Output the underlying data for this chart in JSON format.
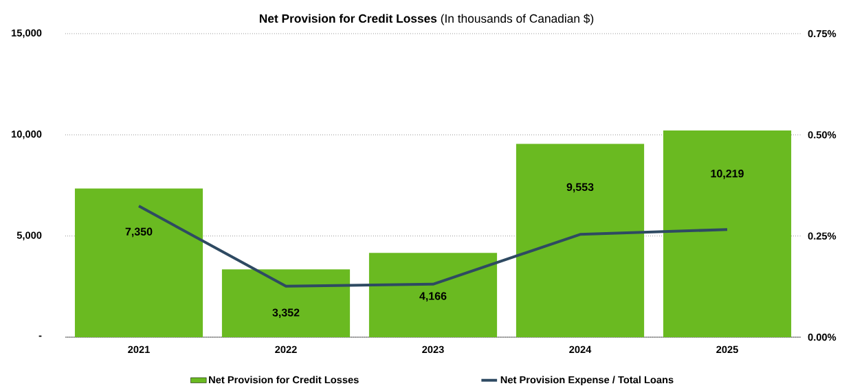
{
  "chart_data": {
    "type": "bar",
    "title": "**Net Provision for Credit Losses** (In thousands of Canadian $)",
    "categories": [
      "2021",
      "2022",
      "2023",
      "2024",
      "2025"
    ],
    "series": [
      {
        "name": "Net Provision for Credit Losses",
        "color": "#6aba21",
        "values": [
          7350,
          3352,
          4166,
          9553,
          10219
        ],
        "value_labels": [
          "7,350",
          "3,352",
          "4,166",
          "9,553",
          "10,219"
        ]
      },
      {
        "name": "Net Provision Expense / Total Loans",
        "type": "line",
        "axis": "y2",
        "color": "#2e4a62",
        "values": [
          0.324,
          0.126,
          0.131,
          0.254,
          0.266
        ]
      }
    ],
    "ylim": [
      0,
      15000
    ],
    "yticks": [
      {
        "value": 0,
        "label": "-"
      },
      {
        "value": 5000,
        "label": "5,000"
      },
      {
        "value": 10000,
        "label": "10,000"
      },
      {
        "value": 15000,
        "label": "15,000"
      }
    ],
    "y2lim": [
      0,
      0.75
    ],
    "y2ticks": [
      {
        "value": 0,
        "label": "0.00%"
      },
      {
        "value": 0.25,
        "label": "0.25%"
      },
      {
        "value": 0.5,
        "label": "0.50%"
      },
      {
        "value": 0.75,
        "label": "0.75%"
      }
    ],
    "grid": "y",
    "legend": "bottom",
    "marker": "none",
    "line_style": "solid"
  }
}
